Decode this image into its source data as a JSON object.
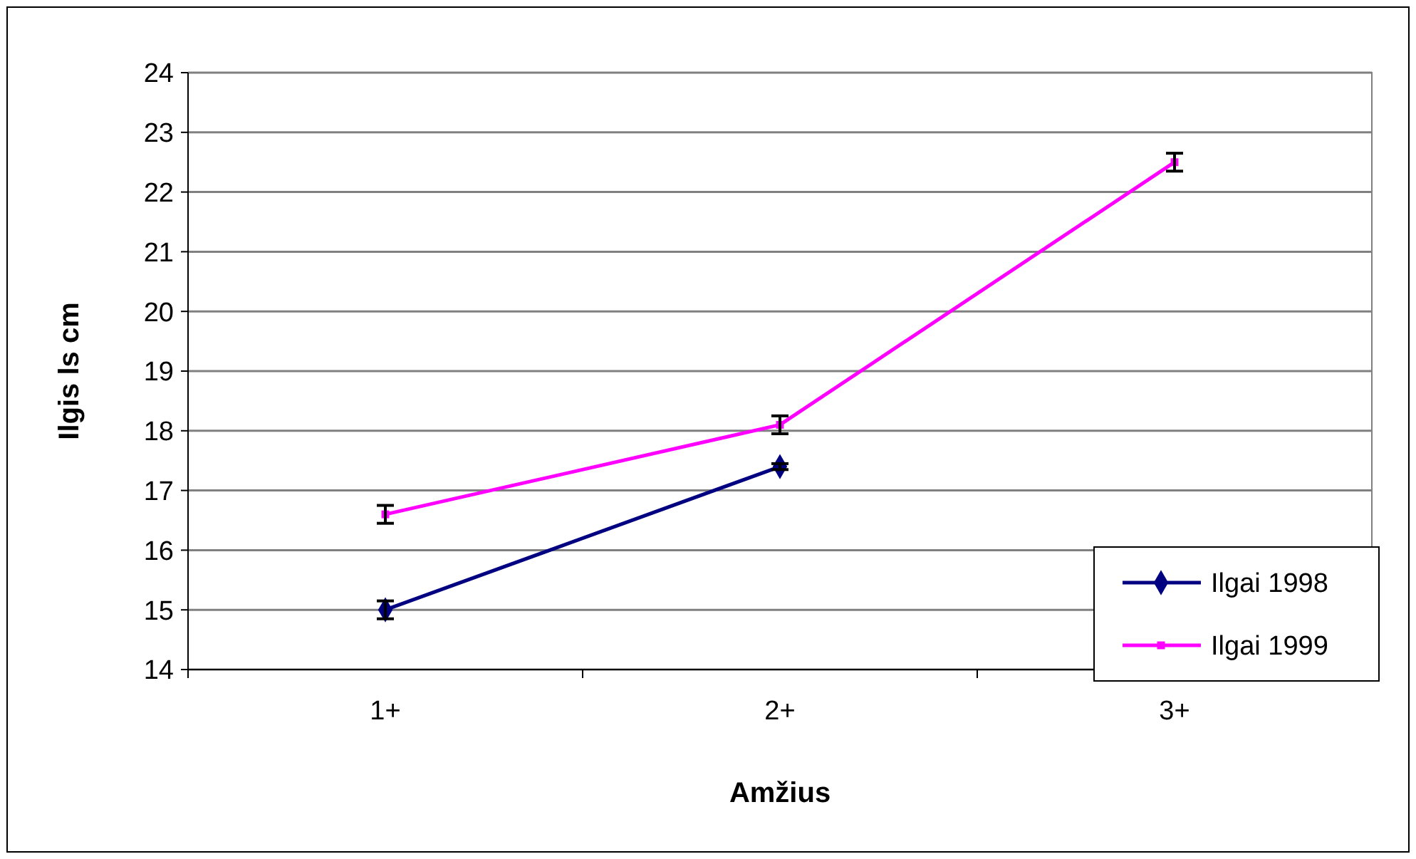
{
  "chart_data": {
    "type": "line",
    "xlabel": "Amžius",
    "ylabel": "Ilgis ls cm",
    "categories": [
      "1+",
      "2+",
      "3+"
    ],
    "series": [
      {
        "name": "Ilgai 1998",
        "color": "#000080",
        "marker": "diamond",
        "values": [
          15.0,
          17.4,
          null
        ],
        "errors": [
          0.15,
          0.05,
          null
        ]
      },
      {
        "name": "Ilgai 1999",
        "color": "#ff00ff",
        "marker": "square",
        "values": [
          16.6,
          18.1,
          22.5
        ],
        "errors": [
          0.15,
          0.15,
          0.15
        ]
      }
    ],
    "ylim": [
      14,
      24
    ],
    "yticks": [
      14,
      15,
      16,
      17,
      18,
      19,
      20,
      21,
      22,
      23,
      24
    ],
    "grid": "y",
    "legend": "bottom right"
  }
}
